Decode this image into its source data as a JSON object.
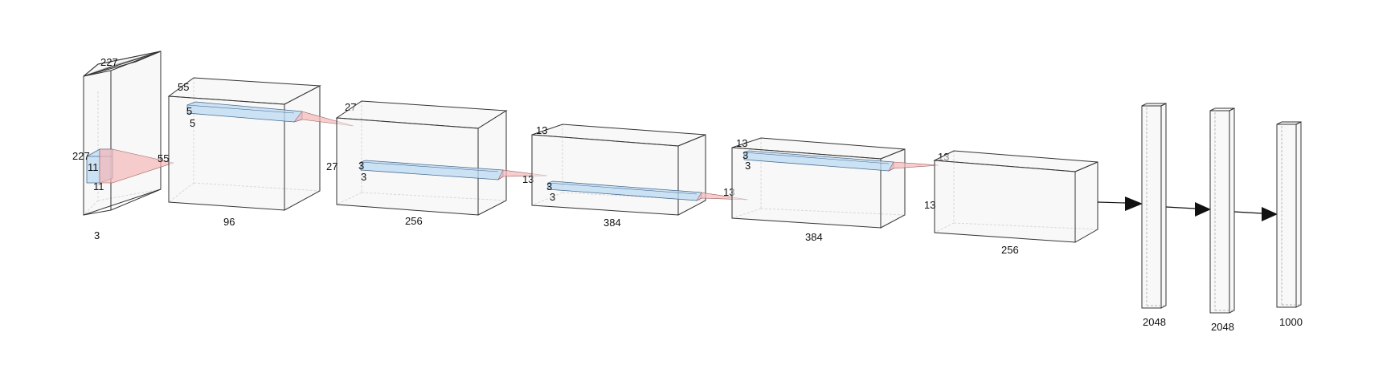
{
  "layers": [
    {
      "id": "input",
      "depth": "227",
      "height": "227",
      "channels": "3"
    },
    {
      "id": "conv1",
      "kernel_w": "11",
      "kernel_h": "11",
      "out_size": "55"
    },
    {
      "id": "conv1_out",
      "size": "55",
      "channels": "96"
    },
    {
      "id": "conv2",
      "kernel_w": "5",
      "kernel_h": "5",
      "out_size": "27"
    },
    {
      "id": "conv2_out",
      "size": "27",
      "channels": "256"
    },
    {
      "id": "conv3",
      "kernel_w": "3",
      "kernel_h": "3",
      "out_size": "13"
    },
    {
      "id": "conv3_out",
      "size": "13",
      "channels": "384"
    },
    {
      "id": "conv4",
      "kernel_w": "3",
      "kernel_h": "3",
      "out_size": "13"
    },
    {
      "id": "conv4_out",
      "size": "13",
      "channels": "384"
    },
    {
      "id": "conv5",
      "kernel_w": "3",
      "kernel_h": "3",
      "out_size": "13"
    },
    {
      "id": "conv5_out",
      "size": "13",
      "height": "13",
      "channels": "256"
    }
  ],
  "dense": [
    {
      "id": "fc6",
      "units": "2048"
    },
    {
      "id": "fc7",
      "units": "2048"
    },
    {
      "id": "fc8",
      "units": "1000"
    }
  ]
}
